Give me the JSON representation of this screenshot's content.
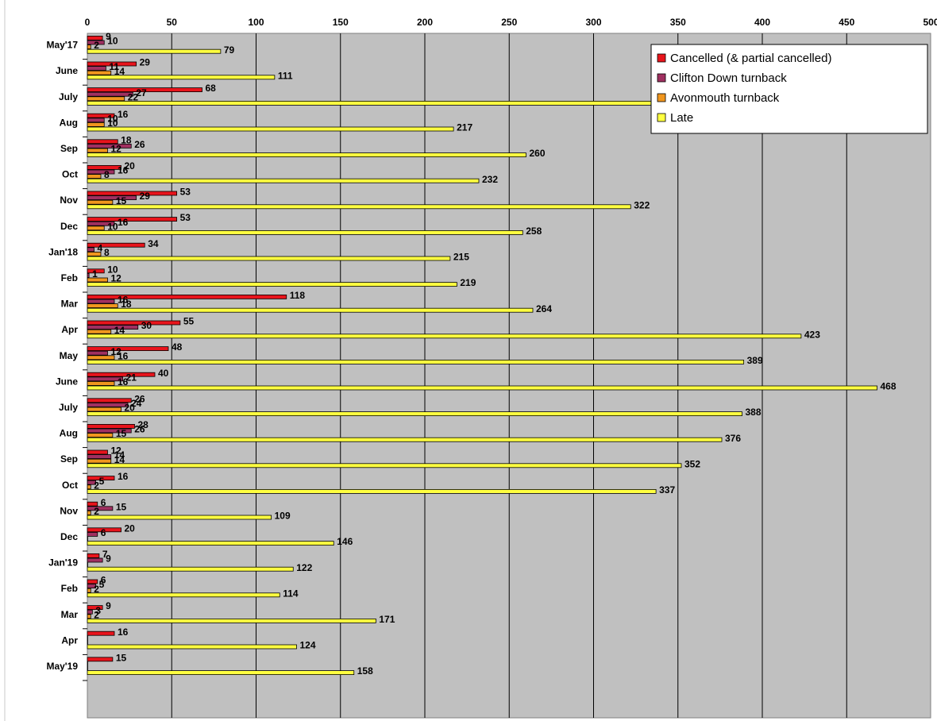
{
  "chart_data": {
    "type": "bar",
    "orientation": "horizontal",
    "title": "",
    "xlabel": "",
    "ylabel": "",
    "xlim": [
      0,
      500
    ],
    "x_ticks": [
      0,
      50,
      100,
      150,
      200,
      250,
      300,
      350,
      400,
      450,
      500
    ],
    "x_tick_labels": [
      "0",
      "50",
      "100",
      "150",
      "200",
      "250",
      "300",
      "350",
      "400",
      "450",
      "500"
    ],
    "grid": "vertical",
    "legend_position": "top-right",
    "categories": [
      "May'17",
      "June",
      "July",
      "Aug",
      "Sep",
      "Oct",
      "Nov",
      "Dec",
      "Jan'18",
      "Feb",
      "Mar",
      "Apr",
      "May",
      "June",
      "July",
      "Aug",
      "Sep",
      "Oct",
      "Nov",
      "Dec",
      "Jan'19",
      "Feb",
      "Mar",
      "Apr",
      "May'19"
    ],
    "series": [
      {
        "name": "Cancelled (& partial cancelled)",
        "color": "#e8141c",
        "values": [
          9,
          29,
          68,
          16,
          18,
          20,
          53,
          53,
          34,
          10,
          118,
          55,
          48,
          40,
          26,
          28,
          12,
          16,
          6,
          20,
          7,
          6,
          9,
          16,
          15
        ]
      },
      {
        "name": "Clifton Down turnback",
        "color": "#a03060",
        "values": [
          10,
          11,
          27,
          10,
          26,
          16,
          29,
          16,
          4,
          1,
          16,
          30,
          12,
          21,
          24,
          26,
          14,
          5,
          15,
          6,
          9,
          5,
          3,
          0,
          0
        ]
      },
      {
        "name": "Avonmouth turnback",
        "color": "#f0961e",
        "values": [
          2,
          14,
          22,
          10,
          12,
          8,
          15,
          10,
          8,
          12,
          18,
          14,
          16,
          16,
          20,
          15,
          14,
          2,
          2,
          0,
          0,
          2,
          2,
          0,
          0
        ]
      },
      {
        "name": "Late",
        "color": "#ffff40",
        "values": [
          79,
          111,
          373,
          217,
          260,
          232,
          322,
          258,
          215,
          219,
          264,
          423,
          389,
          468,
          388,
          376,
          352,
          337,
          109,
          146,
          122,
          114,
          171,
          124,
          158
        ]
      }
    ]
  }
}
